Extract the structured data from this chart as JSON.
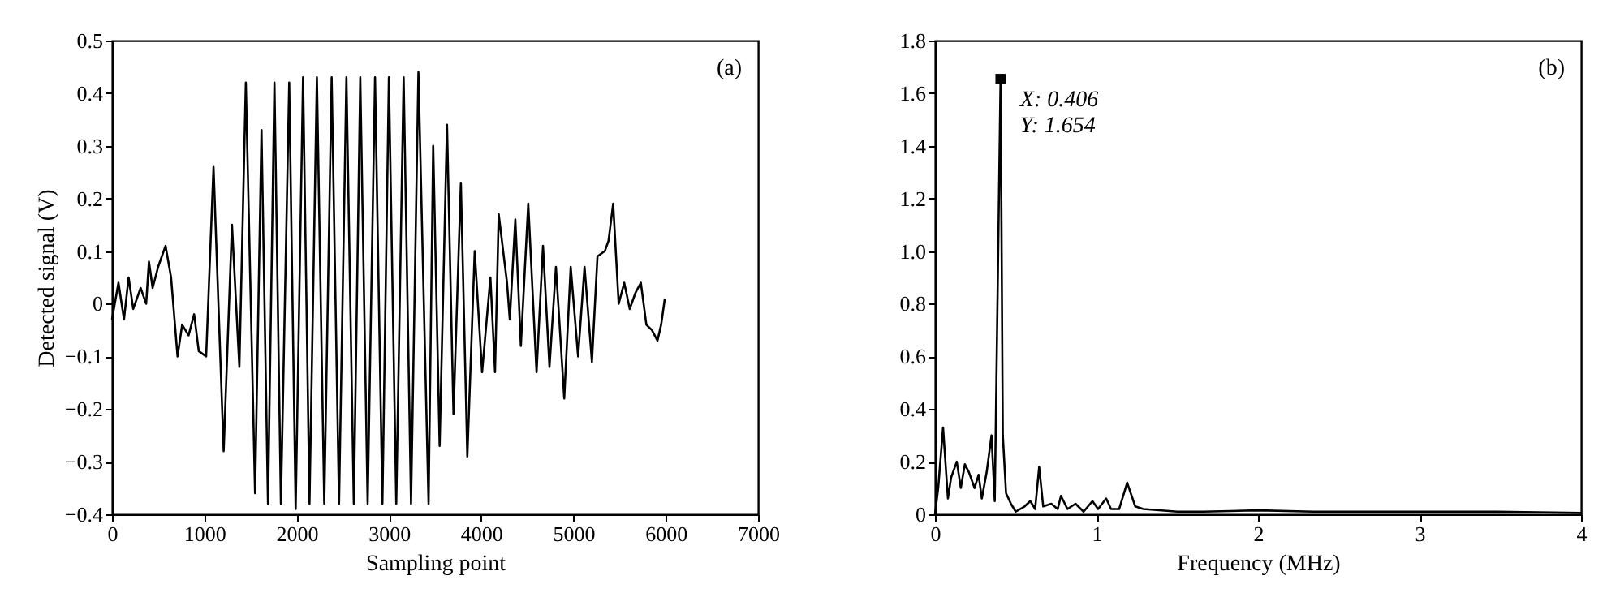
{
  "chart_data": [
    {
      "type": "line",
      "xlabel": "Sampling point",
      "ylabel": "Detected signal (V)",
      "annotations": [
        "(a)"
      ],
      "series": [
        {
          "color": "#000000",
          "x": [
            0,
            70,
            130,
            180,
            230,
            310,
            370,
            400,
            440,
            500,
            580,
            640,
            710,
            760,
            830,
            890,
            940,
            1020,
            1100,
            1210,
            1300,
            1380,
            1450,
            1550,
            1620,
            1690,
            1760,
            1830,
            1920,
            1990,
            2070,
            2140,
            2220,
            2300,
            2380,
            2460,
            2540,
            2620,
            2690,
            2770,
            2850,
            2930,
            3000,
            3080,
            3160,
            3240,
            3320,
            3430,
            3480,
            3550,
            3630,
            3700,
            3780,
            3850,
            3930,
            4010,
            4100,
            4150,
            4190,
            4280,
            4310,
            4370,
            4430,
            4510,
            4600,
            4670,
            4740,
            4810,
            4900,
            4970,
            5050,
            5120,
            5200,
            5260,
            5340,
            5380,
            5430,
            5490,
            5550,
            5610,
            5670,
            5730,
            5790,
            5850,
            5910,
            5950,
            5990
          ],
          "values": [
            -0.03,
            0.04,
            -0.03,
            0.05,
            -0.01,
            0.03,
            0.0,
            0.08,
            0.03,
            0.07,
            0.11,
            0.05,
            -0.1,
            -0.04,
            -0.06,
            -0.02,
            -0.09,
            -0.1,
            0.26,
            -0.28,
            0.15,
            -0.12,
            0.42,
            -0.36,
            0.33,
            -0.38,
            0.42,
            -0.38,
            0.42,
            -0.39,
            0.43,
            -0.38,
            0.43,
            -0.38,
            0.43,
            -0.38,
            0.43,
            -0.38,
            0.43,
            -0.38,
            0.43,
            -0.38,
            0.43,
            -0.38,
            0.43,
            -0.38,
            0.44,
            -0.38,
            0.3,
            -0.27,
            0.34,
            -0.21,
            0.23,
            -0.29,
            0.1,
            -0.13,
            0.05,
            -0.13,
            0.17,
            0.04,
            -0.03,
            0.16,
            -0.08,
            0.19,
            -0.13,
            0.11,
            -0.12,
            0.07,
            -0.18,
            0.07,
            -0.1,
            0.07,
            -0.11,
            0.09,
            0.1,
            0.12,
            0.19,
            0.0,
            0.04,
            -0.01,
            0.02,
            0.04,
            -0.04,
            -0.05,
            -0.07,
            -0.04,
            0.01
          ]
        }
      ],
      "xlim": [
        0,
        7000
      ],
      "xticks": [
        0,
        1000,
        2000,
        3000,
        4000,
        5000,
        6000,
        7000
      ],
      "ylim": [
        -0.4,
        0.5
      ],
      "yticks": [
        {
          "value": -0.4,
          "label": "−0.4"
        },
        {
          "value": -0.3,
          "label": "−0.3"
        },
        {
          "value": -0.2,
          "label": "−0.2"
        },
        {
          "value": -0.1,
          "label": "−0.1"
        },
        0,
        0.1,
        0.2,
        0.3,
        0.4,
        0.5
      ]
    },
    {
      "type": "line",
      "xlabel": "Frequency (MHz)",
      "annotations": [
        "(b)",
        {
          "text": "X: 0.406\nY: 1.654",
          "x": 0.406,
          "y": 1.654
        }
      ],
      "series": [
        {
          "color": "#000000",
          "x": [
            0,
            0.02,
            0.05,
            0.08,
            0.1,
            0.135,
            0.16,
            0.185,
            0.21,
            0.245,
            0.27,
            0.29,
            0.32,
            0.35,
            0.37,
            0.406,
            0.42,
            0.44,
            0.47,
            0.5,
            0.555,
            0.59,
            0.62,
            0.645,
            0.67,
            0.72,
            0.76,
            0.78,
            0.82,
            0.87,
            0.92,
            0.975,
            1.01,
            1.06,
            1.09,
            1.14,
            1.19,
            1.24,
            1.29,
            1.5,
            1.66,
            2.0,
            2.34,
            2.67,
            3.0,
            3.48,
            4.0
          ],
          "values": [
            0,
            0.1,
            0.33,
            0.06,
            0.14,
            0.2,
            0.1,
            0.19,
            0.16,
            0.1,
            0.15,
            0.06,
            0.16,
            0.3,
            0.05,
            1.654,
            0.3,
            0.08,
            0.04,
            0.01,
            0.03,
            0.05,
            0.02,
            0.18,
            0.03,
            0.04,
            0.02,
            0.07,
            0.02,
            0.04,
            0.01,
            0.05,
            0.02,
            0.06,
            0.02,
            0.02,
            0.12,
            0.03,
            0.02,
            0.01,
            0.01,
            0.015,
            0.01,
            0.01,
            0.01,
            0.01,
            0.005
          ]
        }
      ],
      "xlim": [
        0,
        4
      ],
      "xticks": [
        0,
        1,
        2,
        3,
        4
      ],
      "ylim": [
        0,
        1.8
      ],
      "yticks": [
        0,
        0.2,
        0.4,
        0.6,
        0.8,
        {
          "value": 1,
          "label": "1.0"
        },
        1.2,
        1.4,
        1.6,
        1.8
      ]
    }
  ]
}
